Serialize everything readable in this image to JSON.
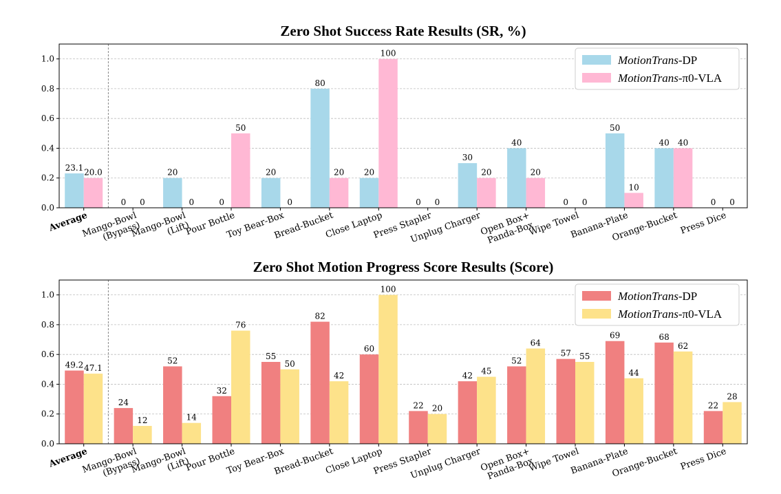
{
  "chart_data": [
    {
      "type": "bar",
      "title": "Zero Shot Success Rate Results (SR, %)",
      "xlabel": "",
      "ylabel": "",
      "ylim": [
        0,
        1.1
      ],
      "yticks": [
        "0.0",
        "0.2",
        "0.4",
        "0.6",
        "0.8",
        "1.0"
      ],
      "grid": true,
      "legend_position": "top-right",
      "categories": [
        "Average",
        "Mango-Bowl\n(Bypass)",
        "Mango-Bowl\n(Lift)",
        "Pour Bottle",
        "Toy Bear-Box",
        "Bread-Bucket",
        "Close Laptop",
        "Press Stapler",
        "Unplug Charger",
        "Open Box+\nPanda-Box",
        "Wipe Towel",
        "Banana-Plate",
        "Orange-Bucket",
        "Press Dice"
      ],
      "series": [
        {
          "name": "MotionTrans-DP",
          "legend_italic": "MotionTrans",
          "legend_suffix": "-DP",
          "color": "#a8d8ea",
          "values": [
            0.231,
            0,
            0.2,
            0,
            0.2,
            0.8,
            0.2,
            0,
            0.3,
            0.4,
            0,
            0.5,
            0.4,
            0
          ],
          "labels": [
            "23.1",
            "0",
            "20",
            "0",
            "20",
            "80",
            "20",
            "0",
            "30",
            "40",
            "0",
            "50",
            "40",
            "0"
          ]
        },
        {
          "name": "MotionTrans-π0-VLA",
          "legend_italic": "MotionTrans",
          "legend_suffix": "-π0-VLA",
          "color": "#ffb8d4",
          "values": [
            0.2,
            0,
            0,
            0.5,
            0,
            0.2,
            1.0,
            0,
            0.2,
            0.2,
            0,
            0.1,
            0.4,
            0
          ],
          "labels": [
            "20.0",
            "0",
            "0",
            "50",
            "0",
            "20",
            "100",
            "0",
            "20",
            "20",
            "0",
            "10",
            "40",
            "0"
          ]
        }
      ]
    },
    {
      "type": "bar",
      "title": "Zero Shot Motion Progress Score Results (Score)",
      "xlabel": "",
      "ylabel": "",
      "ylim": [
        0,
        1.1
      ],
      "yticks": [
        "0.0",
        "0.2",
        "0.4",
        "0.6",
        "0.8",
        "1.0"
      ],
      "grid": true,
      "legend_position": "top-right",
      "categories": [
        "Average",
        "Mango-Bowl\n(Bypass)",
        "Mango-Bowl\n(Lift)",
        "Pour Bottle",
        "Toy Bear-Box",
        "Bread-Bucket",
        "Close Laptop",
        "Press Stapler",
        "Unplug Charger",
        "Open Box+\nPanda-Box",
        "Wipe Towel",
        "Banana-Plate",
        "Orange-Bucket",
        "Press Dice"
      ],
      "series": [
        {
          "name": "MotionTrans-DP",
          "legend_italic": "MotionTrans",
          "legend_suffix": "-DP",
          "color": "#f08080",
          "values": [
            0.492,
            0.24,
            0.52,
            0.32,
            0.55,
            0.82,
            0.6,
            0.22,
            0.42,
            0.52,
            0.57,
            0.69,
            0.68,
            0.22
          ],
          "labels": [
            "49.2",
            "24",
            "52",
            "32",
            "55",
            "82",
            "60",
            "22",
            "42",
            "52",
            "57",
            "69",
            "68",
            "22"
          ]
        },
        {
          "name": "MotionTrans-π0-VLA",
          "legend_italic": "MotionTrans",
          "legend_suffix": "-π0-VLA",
          "color": "#fde28a",
          "values": [
            0.471,
            0.12,
            0.14,
            0.76,
            0.5,
            0.42,
            1.0,
            0.2,
            0.45,
            0.64,
            0.55,
            0.44,
            0.62,
            0.28
          ],
          "labels": [
            "47.1",
            "12",
            "14",
            "76",
            "50",
            "42",
            "100",
            "20",
            "45",
            "64",
            "55",
            "44",
            "62",
            "28"
          ]
        }
      ]
    }
  ]
}
